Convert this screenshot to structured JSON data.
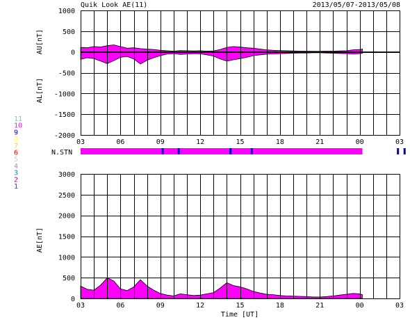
{
  "header": {
    "title": "Quik Look AE(11)",
    "date_range": "2013/05/07-2013/05/08"
  },
  "colors": {
    "fill": "#ff00ff",
    "grid": "#000000",
    "nstn_dark": "#0000cc"
  },
  "station_legend": [
    {
      "label": "11",
      "color": "#00ffff"
    },
    {
      "label": "10",
      "color": "#ff00ff"
    },
    {
      "label": "9",
      "color": "#0000cc"
    },
    {
      "label": "8",
      "color": "#ffff66"
    },
    {
      "label": "7",
      "color": "#ffcc66"
    },
    {
      "label": "6",
      "color": "#ff0000"
    },
    {
      "label": "5",
      "color": "#cccccc"
    },
    {
      "label": "4",
      "color": "#999999"
    },
    {
      "label": "3",
      "color": "#009999"
    },
    {
      "label": "2",
      "color": "#cc0099"
    },
    {
      "label": "1",
      "color": "#3333cc"
    }
  ],
  "nstn": {
    "label": "N.STN",
    "dark_marks_hours": [
      6.1,
      7.3,
      11.2,
      12.8,
      23.8,
      24.3
    ]
  },
  "xlabel": "Time [UT]",
  "chart_data": [
    {
      "type": "area",
      "name": "AU/AL",
      "ylabel_top": "AU[nT]",
      "ylabel_bottom": "AL[nT]",
      "ylim": [
        -2000,
        1000
      ],
      "yticks": [
        1000,
        500,
        0,
        -500,
        -1000,
        -1500,
        -2000
      ],
      "xlim": [
        0,
        24
      ],
      "xtick_labels": [
        "03",
        "06",
        "09",
        "12",
        "15",
        "18",
        "21",
        "00",
        "03"
      ],
      "data_end_hour": 21.2,
      "x": [
        0,
        0.5,
        1,
        1.5,
        2,
        2.5,
        3,
        3.5,
        4,
        4.5,
        5,
        5.5,
        6,
        6.5,
        7,
        7.5,
        8,
        8.5,
        9,
        9.5,
        10,
        10.5,
        11,
        11.5,
        12,
        12.5,
        13,
        13.5,
        14,
        14.5,
        15,
        15.5,
        16,
        16.5,
        17,
        17.5,
        18,
        18.5,
        19,
        19.5,
        20,
        20.5,
        21,
        21.2
      ],
      "au": [
        110,
        100,
        130,
        120,
        150,
        170,
        130,
        90,
        100,
        80,
        70,
        60,
        40,
        30,
        20,
        35,
        30,
        25,
        30,
        20,
        25,
        60,
        110,
        130,
        120,
        100,
        90,
        70,
        50,
        40,
        35,
        30,
        25,
        20,
        20,
        15,
        15,
        20,
        20,
        25,
        30,
        50,
        60,
        70
      ],
      "al": [
        -180,
        -140,
        -160,
        -220,
        -280,
        -210,
        -130,
        -110,
        -170,
        -290,
        -200,
        -140,
        -90,
        -50,
        -40,
        -60,
        -50,
        -40,
        -45,
        -70,
        -100,
        -170,
        -220,
        -190,
        -160,
        -130,
        -90,
        -70,
        -55,
        -45,
        -40,
        -35,
        -30,
        -25,
        -25,
        -20,
        -20,
        -25,
        -30,
        -35,
        -40,
        -50,
        -40,
        -30
      ]
    },
    {
      "type": "area",
      "name": "AE",
      "ylabel": "AE[nT]",
      "ylim": [
        0,
        3000
      ],
      "yticks": [
        3000,
        2500,
        2000,
        1500,
        1000,
        500,
        0
      ],
      "xlim": [
        0,
        24
      ],
      "xtick_labels": [
        "03",
        "06",
        "09",
        "12",
        "15",
        "18",
        "21",
        "00",
        "03"
      ],
      "data_end_hour": 21.2,
      "x": [
        0,
        0.5,
        1,
        1.5,
        2,
        2.5,
        3,
        3.5,
        4,
        4.5,
        5,
        5.5,
        6,
        6.5,
        7,
        7.5,
        8,
        8.5,
        9,
        9.5,
        10,
        10.5,
        11,
        11.5,
        12,
        12.5,
        13,
        13.5,
        14,
        14.5,
        15,
        15.5,
        16,
        16.5,
        17,
        17.5,
        18,
        18.5,
        19,
        19.5,
        20,
        20.5,
        21,
        21.2
      ],
      "values": [
        300,
        220,
        200,
        320,
        500,
        420,
        230,
        190,
        280,
        450,
        300,
        200,
        120,
        80,
        60,
        110,
        90,
        70,
        80,
        110,
        140,
        250,
        380,
        310,
        280,
        230,
        170,
        130,
        100,
        90,
        70,
        60,
        55,
        50,
        45,
        35,
        35,
        45,
        60,
        80,
        100,
        120,
        110,
        90
      ]
    }
  ]
}
